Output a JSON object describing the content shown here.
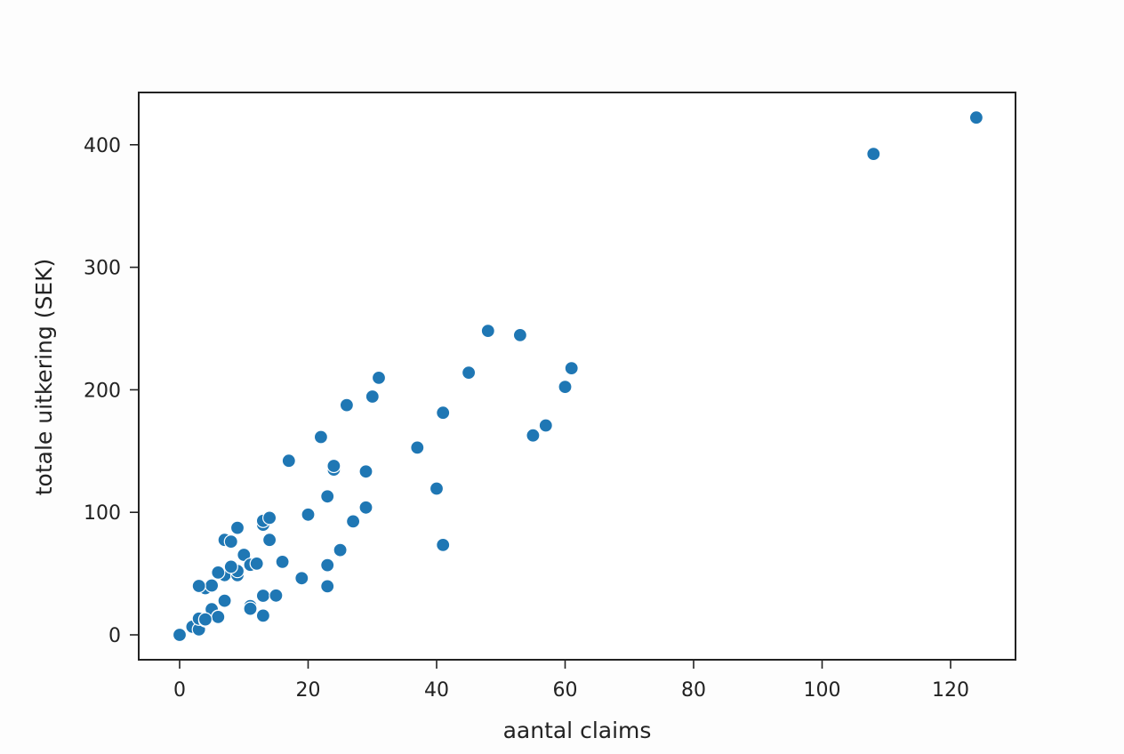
{
  "chart_data": {
    "type": "scatter",
    "title": "",
    "xlabel": "aantal claims",
    "ylabel": "totale uitkering (SEK)",
    "xlim": [
      -6.5,
      130
    ],
    "ylim": [
      -21,
      443
    ],
    "xticks": [
      0,
      20,
      40,
      60,
      80,
      100,
      120
    ],
    "yticks": [
      0,
      100,
      200,
      300,
      400
    ],
    "grid": false,
    "legend": null,
    "marker_color": "#1f77b4",
    "marker_edge_color": "#ffffff",
    "series": [
      {
        "name": "claims",
        "points": [
          [
            108,
            392.5
          ],
          [
            19,
            46.2
          ],
          [
            13,
            15.7
          ],
          [
            124,
            422.2
          ],
          [
            40,
            119.4
          ],
          [
            57,
            170.9
          ],
          [
            23,
            56.9
          ],
          [
            14,
            77.5
          ],
          [
            45,
            214.0
          ],
          [
            10,
            65.3
          ],
          [
            5,
            20.9
          ],
          [
            48,
            248.1
          ],
          [
            11,
            23.5
          ],
          [
            23,
            39.6
          ],
          [
            7,
            48.8
          ],
          [
            2,
            6.6
          ],
          [
            24,
            134.9
          ],
          [
            6,
            50.9
          ],
          [
            3,
            4.4
          ],
          [
            23,
            113.0
          ],
          [
            6,
            14.8
          ],
          [
            9,
            48.7
          ],
          [
            9,
            52.1
          ],
          [
            3,
            13.2
          ],
          [
            29,
            103.9
          ],
          [
            7,
            77.5
          ],
          [
            4,
            11.8
          ],
          [
            20,
            98.1
          ],
          [
            7,
            27.9
          ],
          [
            4,
            38.1
          ],
          [
            0,
            0.0
          ],
          [
            25,
            69.2
          ],
          [
            6,
            14.6
          ],
          [
            5,
            40.3
          ],
          [
            22,
            161.5
          ],
          [
            11,
            57.2
          ],
          [
            61,
            217.6
          ],
          [
            12,
            58.1
          ],
          [
            4,
            12.6
          ],
          [
            16,
            59.6
          ],
          [
            13,
            89.9
          ],
          [
            60,
            202.4
          ],
          [
            41,
            181.3
          ],
          [
            37,
            152.8
          ],
          [
            55,
            162.8
          ],
          [
            41,
            73.4
          ],
          [
            11,
            21.3
          ],
          [
            27,
            92.6
          ],
          [
            8,
            76.1
          ],
          [
            3,
            39.9
          ],
          [
            17,
            142.1
          ],
          [
            13,
            93.0
          ],
          [
            13,
            31.9
          ],
          [
            15,
            32.1
          ],
          [
            8,
            55.6
          ],
          [
            29,
            133.3
          ],
          [
            30,
            194.5
          ],
          [
            24,
            137.9
          ],
          [
            9,
            87.4
          ],
          [
            31,
            209.8
          ],
          [
            14,
            95.5
          ],
          [
            53,
            244.6
          ],
          [
            26,
            187.5
          ]
        ]
      }
    ]
  }
}
